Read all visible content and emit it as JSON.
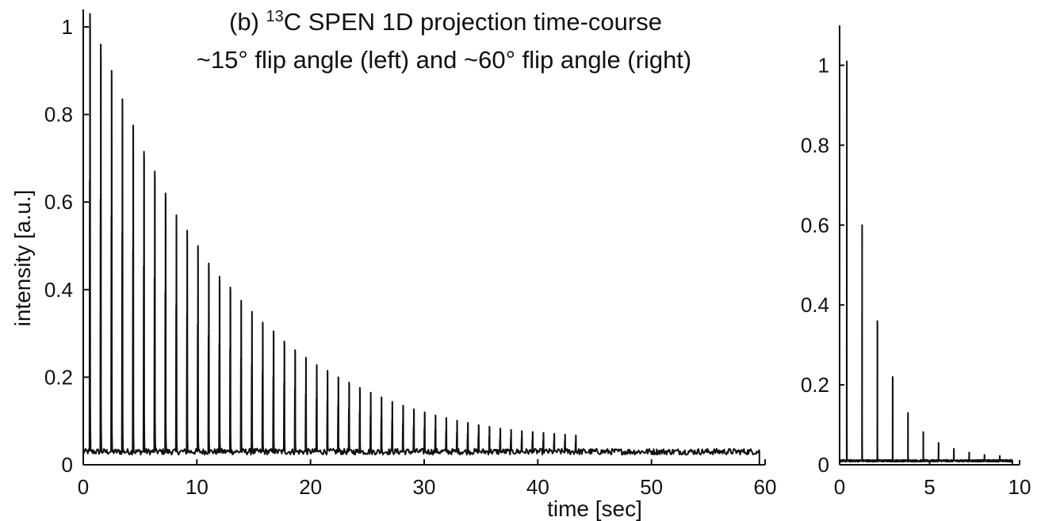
{
  "chart_data": [
    {
      "type": "line",
      "panel": "left",
      "title_prefix": "(b) ",
      "title_superscript": "13",
      "title_main": "C SPEN 1D projection time-course",
      "subtitle": "~15° flip angle (left) and ~60° flip angle (right)",
      "xlabel": "time [sec]",
      "ylabel": "intensity [a.u.]",
      "xlim": [
        0,
        60
      ],
      "ylim": [
        0,
        1
      ],
      "x_ticks": [
        "0",
        "10",
        "20",
        "30",
        "40",
        "50",
        "60"
      ],
      "y_ticks": [
        "0",
        "0.2",
        "0.4",
        "0.6",
        "0.8",
        "1"
      ],
      "grid": false,
      "baseline": 0.03,
      "x_end": 59.5,
      "series": [
        {
          "peak_times": [
            0.6,
            1.55,
            2.5,
            3.45,
            4.4,
            5.35,
            6.3,
            7.25,
            8.2,
            9.15,
            10.1,
            11.05,
            12.0,
            12.95,
            13.9,
            14.85,
            15.8,
            16.75,
            17.7,
            18.65,
            19.6,
            20.55,
            21.5,
            22.45,
            23.4,
            24.35,
            25.3,
            26.25,
            27.2,
            28.15,
            29.1,
            30.05,
            31.0,
            31.95,
            32.9,
            33.85,
            34.8,
            35.75,
            36.7,
            37.65,
            38.6,
            39.55,
            40.5,
            41.45,
            42.4,
            43.35
          ],
          "peak_values": [
            1.0,
            0.93,
            0.87,
            0.805,
            0.745,
            0.685,
            0.64,
            0.59,
            0.54,
            0.505,
            0.47,
            0.43,
            0.4,
            0.375,
            0.345,
            0.32,
            0.295,
            0.275,
            0.252,
            0.232,
            0.215,
            0.198,
            0.185,
            0.17,
            0.158,
            0.146,
            0.135,
            0.124,
            0.114,
            0.105,
            0.097,
            0.09,
            0.083,
            0.077,
            0.071,
            0.066,
            0.061,
            0.057,
            0.053,
            0.05,
            0.047,
            0.045,
            0.043,
            0.041,
            0.039,
            0.037
          ]
        }
      ]
    },
    {
      "type": "line",
      "panel": "right",
      "xlim": [
        0,
        10
      ],
      "ylim": [
        0,
        1.1
      ],
      "x_ticks": [
        "0",
        "5",
        "10"
      ],
      "y_ticks": [
        "0",
        "0.2",
        "0.4",
        "0.6",
        "0.8",
        "1"
      ],
      "grid": false,
      "baseline": 0.01,
      "x_end": 9.6,
      "series": [
        {
          "peak_times": [
            0.4,
            1.25,
            2.1,
            2.95,
            3.8,
            4.65,
            5.5,
            6.35,
            7.2,
            8.05,
            8.9
          ],
          "peak_values": [
            1.0,
            0.59,
            0.35,
            0.21,
            0.12,
            0.072,
            0.045,
            0.03,
            0.021,
            0.015,
            0.012
          ]
        }
      ]
    }
  ]
}
